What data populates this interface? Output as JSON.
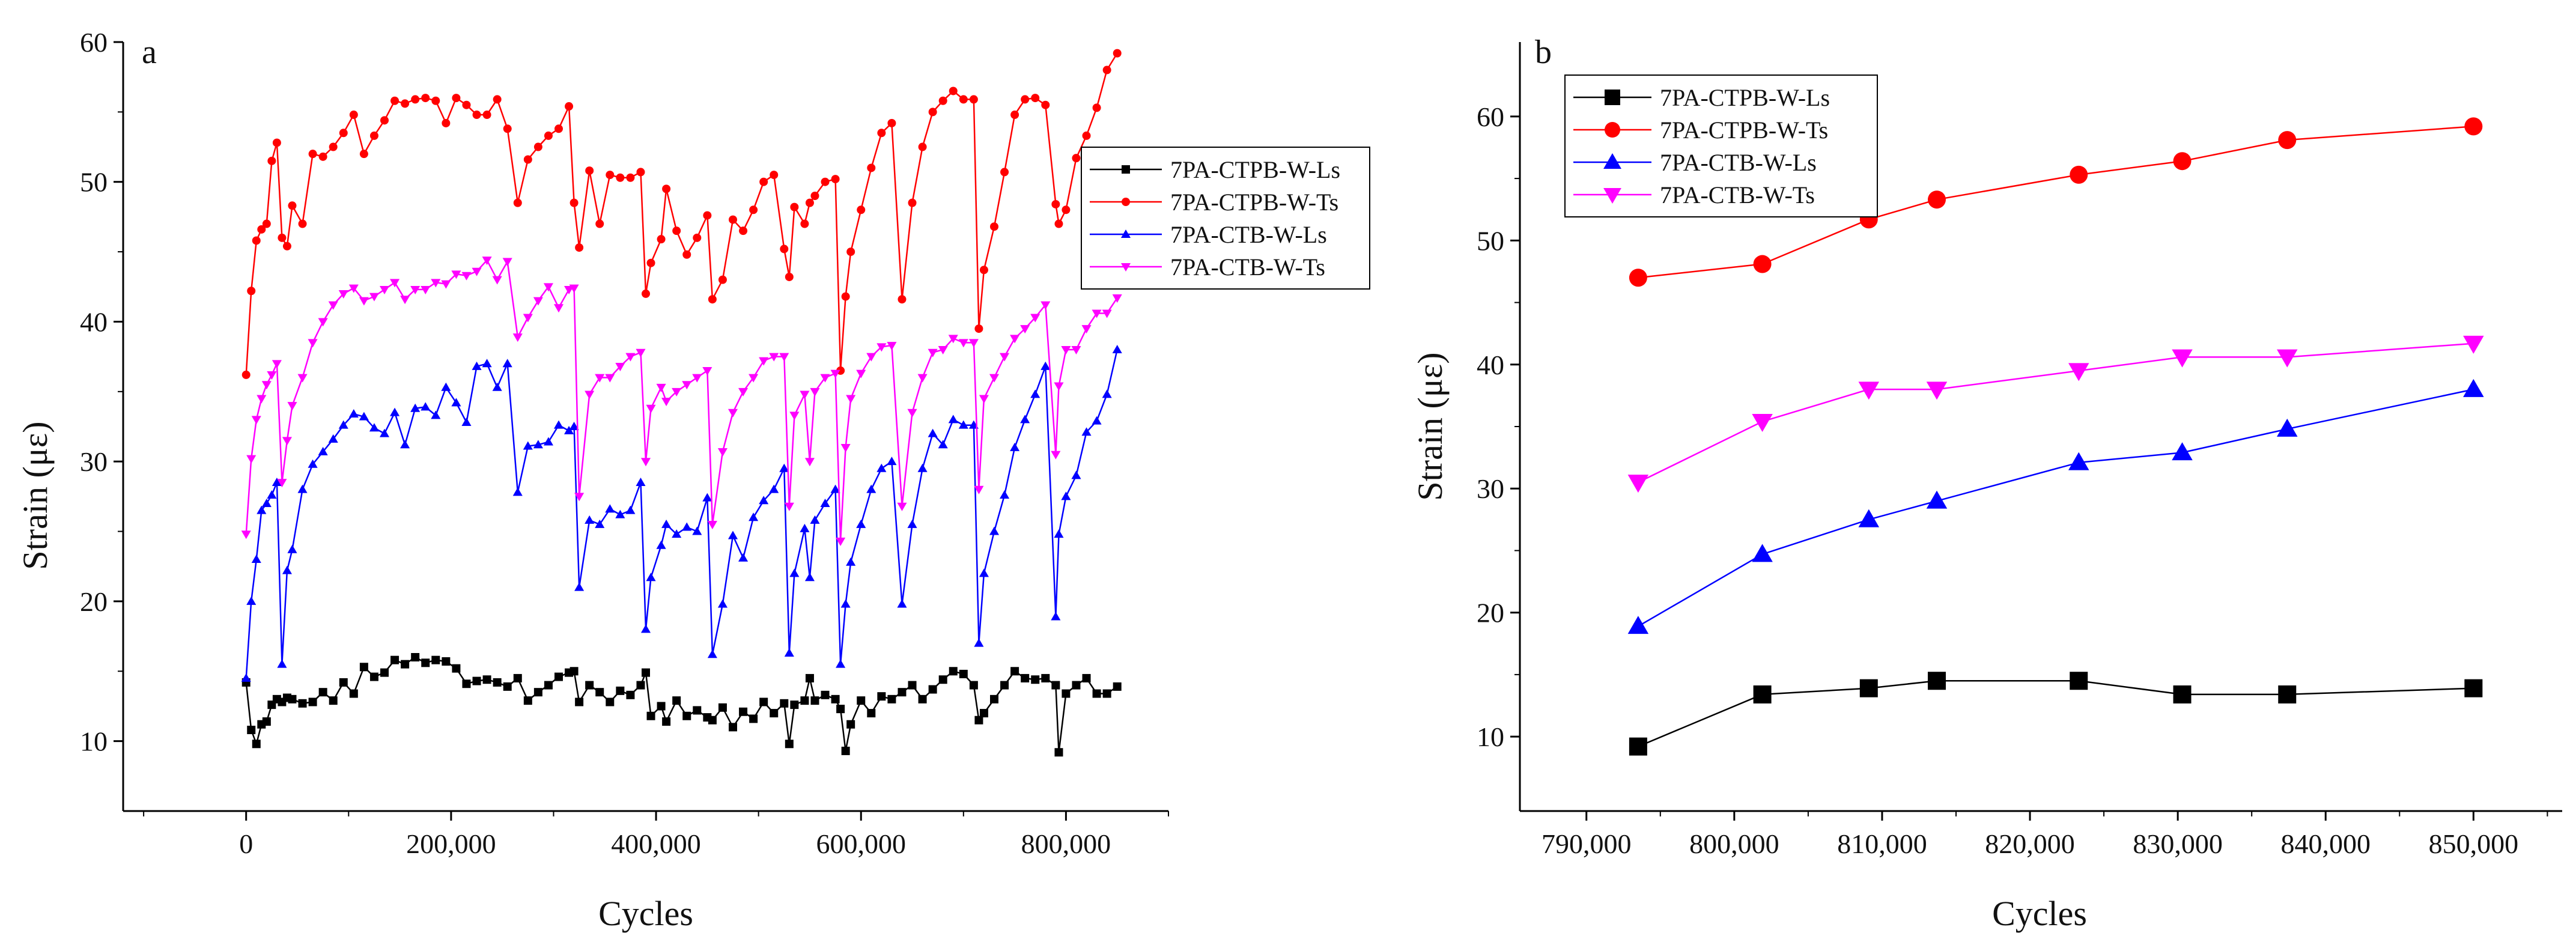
{
  "panels": [
    {
      "letter": "a"
    },
    {
      "letter": "b"
    }
  ],
  "chart_data": [
    {
      "type": "line",
      "panel": "a",
      "title": "",
      "xlabel": "Cycles",
      "ylabel": "Strain (με)",
      "xlim": [
        -120000,
        900000
      ],
      "ylim": [
        5,
        60
      ],
      "xticks": [
        0,
        200000,
        400000,
        600000,
        800000
      ],
      "xtick_labels": [
        "0",
        "200,000",
        "400,000",
        "600,000",
        "800,000"
      ],
      "yticks": [
        10,
        20,
        30,
        40,
        50,
        60
      ],
      "ytick_labels": [
        "10",
        "20",
        "30",
        "40",
        "50",
        "60"
      ],
      "grid": false,
      "legend_position": "right",
      "series": [
        {
          "name": "7PA-CTPB-W-Ls",
          "color": "#000000",
          "marker": "square-small",
          "x": [
            0,
            5000,
            10000,
            15000,
            20000,
            25000,
            30000,
            35000,
            40000,
            45000,
            55000,
            65000,
            75000,
            85000,
            95000,
            105000,
            115000,
            125000,
            135000,
            145000,
            155000,
            165000,
            175000,
            185000,
            195000,
            205000,
            215000,
            225000,
            235000,
            245000,
            255000,
            265000,
            275000,
            285000,
            295000,
            305000,
            315000,
            320000,
            325000,
            335000,
            345000,
            355000,
            365000,
            375000,
            385000,
            390000,
            395000,
            405000,
            410000,
            420000,
            430000,
            440000,
            450000,
            455000,
            465000,
            475000,
            485000,
            495000,
            505000,
            515000,
            525000,
            530000,
            535000,
            545000,
            550000,
            555000,
            565000,
            575000,
            580000,
            585000,
            590000,
            600000,
            610000,
            620000,
            630000,
            640000,
            650000,
            660000,
            670000,
            680000,
            690000,
            700000,
            710000,
            715000,
            720000,
            730000,
            740000,
            750000,
            760000,
            770000,
            780000,
            790000,
            793000,
            800000,
            810000,
            820000,
            830000,
            840000,
            850000
          ],
          "y": [
            14.2,
            10.8,
            9.8,
            11.2,
            11.4,
            12.6,
            13.0,
            12.8,
            13.1,
            13.0,
            12.7,
            12.8,
            13.5,
            12.9,
            14.2,
            13.4,
            15.3,
            14.6,
            14.9,
            15.8,
            15.5,
            16.0,
            15.6,
            15.8,
            15.7,
            15.2,
            14.1,
            14.3,
            14.4,
            14.2,
            13.9,
            14.5,
            12.9,
            13.5,
            14.0,
            14.6,
            14.9,
            15.0,
            12.8,
            14.0,
            13.5,
            12.8,
            13.6,
            13.3,
            14.0,
            14.9,
            11.8,
            12.5,
            11.4,
            12.9,
            11.8,
            12.2,
            11.7,
            11.5,
            12.4,
            11.0,
            12.1,
            11.6,
            12.8,
            12.0,
            12.7,
            9.8,
            12.6,
            12.9,
            14.5,
            12.9,
            13.3,
            13.0,
            12.3,
            9.3,
            11.2,
            12.9,
            12.0,
            13.2,
            13.0,
            13.5,
            14.0,
            13.0,
            13.7,
            14.4,
            15.0,
            14.8,
            14.0,
            11.5,
            12.0,
            13.0,
            14.0,
            15.0,
            14.5,
            14.4,
            14.5,
            14.0,
            9.2,
            13.4,
            14.0,
            14.5,
            13.4,
            13.4,
            13.9
          ]
        },
        {
          "name": "7PA-CTPB-W-Ts",
          "color": "#ff0000",
          "marker": "circle-small",
          "x": [
            0,
            5000,
            10000,
            15000,
            20000,
            25000,
            30000,
            35000,
            40000,
            45000,
            55000,
            65000,
            75000,
            85000,
            95000,
            105000,
            115000,
            125000,
            135000,
            145000,
            155000,
            165000,
            175000,
            185000,
            195000,
            205000,
            215000,
            225000,
            235000,
            245000,
            255000,
            265000,
            275000,
            285000,
            295000,
            305000,
            315000,
            320000,
            325000,
            335000,
            345000,
            355000,
            365000,
            375000,
            385000,
            390000,
            395000,
            405000,
            410000,
            420000,
            430000,
            440000,
            450000,
            455000,
            465000,
            475000,
            485000,
            495000,
            505000,
            515000,
            525000,
            530000,
            535000,
            545000,
            550000,
            555000,
            565000,
            575000,
            580000,
            585000,
            590000,
            600000,
            610000,
            620000,
            630000,
            640000,
            650000,
            660000,
            670000,
            680000,
            690000,
            700000,
            710000,
            715000,
            720000,
            730000,
            740000,
            750000,
            760000,
            770000,
            780000,
            790000,
            793000,
            800000,
            810000,
            820000,
            830000,
            840000,
            850000
          ],
          "y": [
            36.2,
            42.2,
            45.8,
            46.6,
            47.0,
            51.5,
            52.8,
            46.0,
            45.4,
            48.3,
            47.0,
            52.0,
            51.8,
            52.5,
            53.5,
            54.8,
            52.0,
            53.3,
            54.4,
            55.8,
            55.6,
            55.9,
            56.0,
            55.8,
            54.2,
            56.0,
            55.5,
            54.8,
            54.8,
            55.9,
            53.8,
            48.5,
            51.6,
            52.5,
            53.3,
            53.8,
            55.4,
            48.5,
            45.3,
            50.8,
            47.0,
            50.5,
            50.3,
            50.3,
            50.7,
            42.0,
            44.2,
            45.9,
            49.5,
            46.5,
            44.8,
            46.0,
            47.6,
            41.6,
            43.0,
            47.3,
            46.5,
            48.0,
            50.0,
            50.5,
            45.2,
            43.2,
            48.2,
            47.0,
            48.5,
            49.0,
            50.0,
            50.2,
            36.5,
            41.8,
            45.0,
            48.0,
            51.0,
            53.5,
            54.2,
            41.6,
            48.5,
            52.5,
            55.0,
            55.8,
            56.5,
            55.9,
            55.9,
            39.5,
            43.7,
            46.8,
            50.7,
            54.8,
            55.9,
            56.0,
            55.5,
            48.4,
            47.0,
            48.0,
            51.7,
            53.3,
            55.3,
            58.0,
            59.2
          ]
        },
        {
          "name": "7PA-CTB-W-Ls",
          "color": "#0000ff",
          "marker": "triangle-up-small",
          "x": [
            0,
            5000,
            10000,
            15000,
            20000,
            25000,
            30000,
            35000,
            40000,
            45000,
            55000,
            65000,
            75000,
            85000,
            95000,
            105000,
            115000,
            125000,
            135000,
            145000,
            155000,
            165000,
            175000,
            185000,
            195000,
            205000,
            215000,
            225000,
            235000,
            245000,
            255000,
            265000,
            275000,
            285000,
            295000,
            305000,
            315000,
            320000,
            325000,
            335000,
            345000,
            355000,
            365000,
            375000,
            385000,
            390000,
            395000,
            405000,
            410000,
            420000,
            430000,
            440000,
            450000,
            455000,
            465000,
            475000,
            485000,
            495000,
            505000,
            515000,
            525000,
            530000,
            535000,
            545000,
            550000,
            555000,
            565000,
            575000,
            580000,
            585000,
            590000,
            600000,
            610000,
            620000,
            630000,
            640000,
            650000,
            660000,
            670000,
            680000,
            690000,
            700000,
            710000,
            715000,
            720000,
            730000,
            740000,
            750000,
            760000,
            770000,
            780000,
            790000,
            793000,
            800000,
            810000,
            820000,
            830000,
            840000,
            850000
          ],
          "y": [
            14.5,
            20.0,
            23.0,
            26.5,
            27.0,
            27.6,
            28.5,
            15.5,
            22.2,
            23.7,
            28.0,
            29.8,
            30.7,
            31.6,
            32.6,
            33.4,
            33.2,
            32.4,
            32.0,
            33.5,
            31.2,
            33.8,
            33.9,
            33.3,
            35.3,
            34.2,
            32.8,
            36.8,
            37.0,
            35.3,
            37.0,
            27.8,
            31.1,
            31.2,
            31.4,
            32.6,
            32.2,
            32.5,
            21.0,
            25.8,
            25.5,
            26.6,
            26.2,
            26.5,
            28.5,
            18.0,
            21.7,
            24.0,
            25.5,
            24.8,
            25.3,
            25.0,
            27.4,
            16.2,
            19.8,
            24.7,
            23.1,
            26.0,
            27.2,
            28.0,
            29.5,
            16.3,
            22.0,
            25.2,
            21.7,
            25.8,
            27.0,
            28.0,
            15.5,
            19.8,
            22.8,
            25.5,
            28.0,
            29.5,
            30.0,
            19.8,
            25.5,
            29.5,
            32.0,
            31.2,
            33.0,
            32.6,
            32.6,
            17.0,
            22.0,
            25.0,
            27.6,
            31.0,
            33.0,
            34.8,
            36.8,
            18.9,
            24.8,
            27.5,
            29.0,
            32.1,
            32.9,
            34.8,
            38.0
          ]
        },
        {
          "name": "7PA-CTB-W-Ts",
          "color": "#ff00ff",
          "marker": "triangle-down-small",
          "x": [
            0,
            5000,
            10000,
            15000,
            20000,
            25000,
            30000,
            35000,
            40000,
            45000,
            55000,
            65000,
            75000,
            85000,
            95000,
            105000,
            115000,
            125000,
            135000,
            145000,
            155000,
            165000,
            175000,
            185000,
            195000,
            205000,
            215000,
            225000,
            235000,
            245000,
            255000,
            265000,
            275000,
            285000,
            295000,
            305000,
            315000,
            320000,
            325000,
            335000,
            345000,
            355000,
            365000,
            375000,
            385000,
            390000,
            395000,
            405000,
            410000,
            420000,
            430000,
            440000,
            450000,
            455000,
            465000,
            475000,
            485000,
            495000,
            505000,
            515000,
            525000,
            530000,
            535000,
            545000,
            550000,
            555000,
            565000,
            575000,
            580000,
            585000,
            590000,
            600000,
            610000,
            620000,
            630000,
            640000,
            650000,
            660000,
            670000,
            680000,
            690000,
            700000,
            710000,
            715000,
            720000,
            730000,
            740000,
            750000,
            760000,
            770000,
            780000,
            790000,
            793000,
            800000,
            810000,
            820000,
            830000,
            840000,
            850000
          ],
          "y": [
            24.8,
            30.2,
            33.0,
            34.5,
            35.5,
            36.2,
            37.0,
            28.5,
            31.5,
            34.0,
            36.0,
            38.5,
            40.0,
            41.2,
            42.0,
            42.4,
            41.5,
            41.8,
            42.3,
            42.8,
            41.6,
            42.3,
            42.3,
            42.8,
            42.7,
            43.4,
            43.3,
            43.6,
            44.4,
            43.0,
            44.3,
            38.9,
            40.3,
            41.5,
            42.5,
            41.0,
            42.3,
            42.4,
            27.5,
            34.8,
            36.0,
            36.0,
            36.8,
            37.5,
            37.8,
            30.0,
            33.8,
            35.3,
            34.3,
            35.0,
            35.5,
            36.0,
            36.5,
            25.5,
            30.7,
            33.5,
            35.0,
            36.0,
            37.2,
            37.5,
            37.5,
            26.8,
            33.3,
            34.8,
            30.0,
            35.0,
            36.0,
            36.3,
            24.3,
            31.0,
            34.5,
            36.3,
            37.5,
            38.2,
            38.3,
            26.8,
            33.5,
            36.0,
            37.8,
            38.0,
            38.8,
            38.5,
            38.5,
            28.0,
            34.5,
            36.0,
            37.5,
            38.8,
            39.5,
            40.3,
            41.2,
            30.5,
            35.4,
            38.0,
            38.0,
            39.5,
            40.6,
            40.6,
            41.7
          ]
        }
      ]
    },
    {
      "type": "line",
      "panel": "b",
      "title": "",
      "xlabel": "Cycles",
      "ylabel": "Strain (με)",
      "xlim": [
        785500,
        856000
      ],
      "ylim": [
        4,
        66
      ],
      "xticks": [
        790000,
        800000,
        810000,
        820000,
        830000,
        840000,
        850000
      ],
      "xtick_labels": [
        "790,000",
        "800,000",
        "810,000",
        "820,000",
        "830,000",
        "840,000",
        "850,000"
      ],
      "yticks": [
        10,
        20,
        30,
        40,
        50,
        60
      ],
      "ytick_labels": [
        "10",
        "20",
        "30",
        "40",
        "50",
        "60"
      ],
      "grid": false,
      "legend_position": "top-left",
      "series": [
        {
          "name": "7PA-CTPB-W-Ls",
          "color": "#000000",
          "marker": "square",
          "x": [
            793500,
            801900,
            809100,
            813700,
            823300,
            830300,
            837400,
            850000
          ],
          "y": [
            9.2,
            13.4,
            13.9,
            14.5,
            14.5,
            13.4,
            13.4,
            13.9
          ]
        },
        {
          "name": "7PA-CTPB-W-Ts",
          "color": "#ff0000",
          "marker": "circle",
          "x": [
            793500,
            801900,
            809100,
            813700,
            823300,
            830300,
            837400,
            850000
          ],
          "y": [
            47.0,
            48.1,
            51.7,
            53.3,
            55.3,
            56.4,
            58.1,
            59.2
          ]
        },
        {
          "name": "7PA-CTB-W-Ls",
          "color": "#0000ff",
          "marker": "triangle-up",
          "x": [
            793500,
            801900,
            809100,
            813700,
            823300,
            830300,
            837400,
            850000
          ],
          "y": [
            18.9,
            24.7,
            27.5,
            29.0,
            32.1,
            32.9,
            34.8,
            38.0
          ]
        },
        {
          "name": "7PA-CTB-W-Ts",
          "color": "#ff00ff",
          "marker": "triangle-down",
          "x": [
            793500,
            801900,
            809100,
            813700,
            823300,
            830300,
            837400,
            850000
          ],
          "y": [
            30.5,
            35.4,
            38.0,
            38.0,
            39.5,
            40.6,
            40.6,
            41.7
          ]
        }
      ]
    }
  ]
}
